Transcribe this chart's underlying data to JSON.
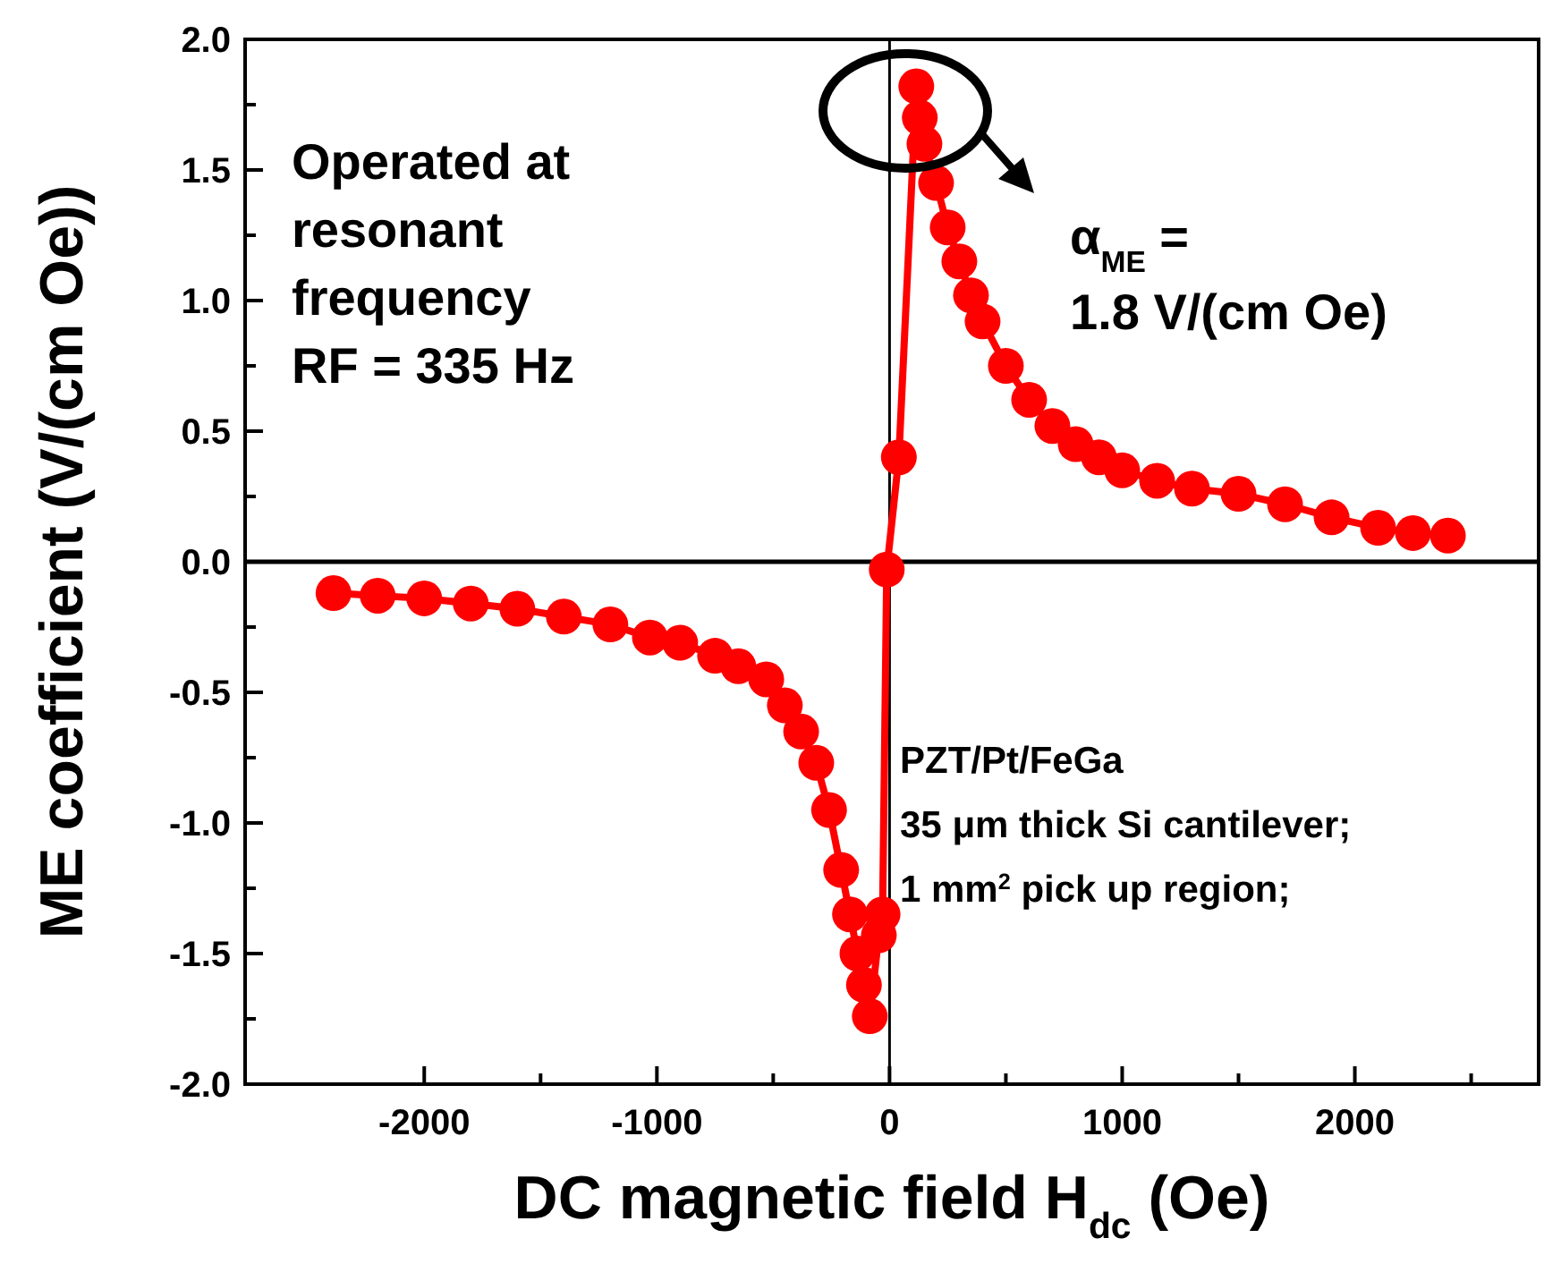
{
  "chart_data": {
    "type": "line",
    "xlabel": "DC magnetic field H$_{dc}$ (Oe)",
    "ylabel": "ME coefficient (V/(cm Oe))",
    "xlim": [
      -2770,
      2790
    ],
    "ylim": [
      -2.0,
      2.0
    ],
    "xticks": [
      {
        "value": -2000,
        "label": "-2000"
      },
      {
        "value": -1500,
        "label": null
      },
      {
        "value": -1000,
        "label": "-1000"
      },
      {
        "value": -500,
        "label": null
      },
      {
        "value": 0,
        "label": "0"
      },
      {
        "value": 500,
        "label": null
      },
      {
        "value": 1000,
        "label": "1000"
      },
      {
        "value": 1500,
        "label": null
      },
      {
        "value": 2000,
        "label": "2000"
      },
      {
        "value": 2500,
        "label": null
      }
    ],
    "yticks": [
      {
        "value": -2.0,
        "label": "-2.0"
      },
      {
        "value": -1.75,
        "label": null
      },
      {
        "value": -1.5,
        "label": "-1.5"
      },
      {
        "value": -1.25,
        "label": null
      },
      {
        "value": -1.0,
        "label": "-1.0"
      },
      {
        "value": -0.75,
        "label": null
      },
      {
        "value": -0.5,
        "label": "-0.5"
      },
      {
        "value": -0.25,
        "label": null
      },
      {
        "value": 0.0,
        "label": "0.0"
      },
      {
        "value": 0.25,
        "label": null
      },
      {
        "value": 0.5,
        "label": "0.5"
      },
      {
        "value": 0.75,
        "label": null
      },
      {
        "value": 1.0,
        "label": "1.0"
      },
      {
        "value": 1.25,
        "label": null
      },
      {
        "value": 1.5,
        "label": "1.5"
      },
      {
        "value": 1.75,
        "label": null
      },
      {
        "value": 2.0,
        "label": "2.0"
      }
    ],
    "grid": false,
    "marker": "circle",
    "line_style": "solid",
    "series": [
      {
        "color": "#ff0000",
        "x": [
          -2390,
          -2200,
          -2000,
          -1800,
          -1600,
          -1400,
          -1200,
          -1030,
          -900,
          -750,
          -650,
          -530,
          -450,
          -380,
          -315,
          -260,
          -208,
          -170,
          -138,
          -110,
          -85,
          -46,
          -30,
          -12,
          40,
          115,
          130,
          150,
          200,
          250,
          300,
          350,
          400,
          500,
          600,
          700,
          800,
          900,
          1000,
          1150,
          1300,
          1500,
          1700,
          1900,
          2100,
          2250,
          2400
        ],
        "values": [
          -0.12,
          -0.13,
          -0.14,
          -0.16,
          -0.18,
          -0.21,
          -0.24,
          -0.29,
          -0.31,
          -0.36,
          -0.4,
          -0.45,
          -0.55,
          -0.65,
          -0.77,
          -0.95,
          -1.18,
          -1.35,
          -1.5,
          -1.62,
          -1.74,
          -1.43,
          -1.35,
          -0.03,
          0.4,
          1.82,
          1.7,
          1.6,
          1.45,
          1.28,
          1.15,
          1.02,
          0.92,
          0.75,
          0.62,
          0.52,
          0.45,
          0.4,
          0.35,
          0.31,
          0.28,
          0.26,
          0.22,
          0.17,
          0.13,
          0.11,
          0.1
        ]
      }
    ],
    "ref_lines": [
      {
        "axis": "x",
        "value": 0,
        "color": "#000000"
      },
      {
        "axis": "y",
        "value": 0,
        "color": "#000000"
      }
    ],
    "annotations": [
      "Operated at\nresonant\nfrequency\nRF = 335 Hz",
      "α$_{ME}$ =\n1.8 V/(cm Oe)",
      "PZT/Pt/FeGa\n35 μm thick Si cantilever;\n1 mm$^{2}$ pick up region;"
    ]
  }
}
